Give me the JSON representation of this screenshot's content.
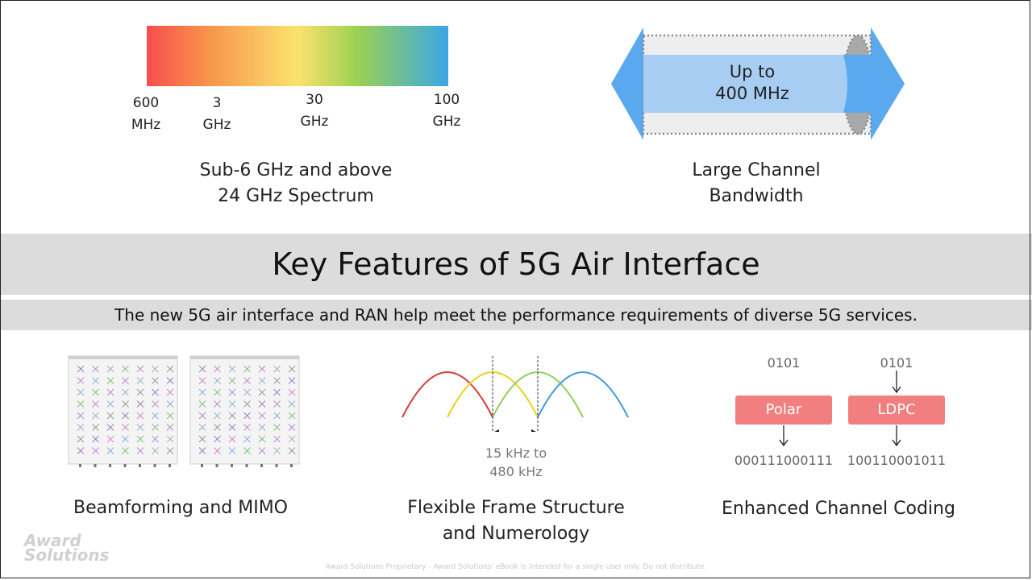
{
  "spectrum": {
    "ticks": [
      {
        "value": "600",
        "unit": "MHz"
      },
      {
        "value": "3",
        "unit": "GHz"
      },
      {
        "value": "30",
        "unit": "GHz"
      },
      {
        "value": "100",
        "unit": "GHz"
      }
    ],
    "caption_line1": "Sub-6 GHz and above",
    "caption_line2": "24 GHz Spectrum"
  },
  "bandwidth": {
    "label_line1": "Up to",
    "label_line2": "400 MHz",
    "caption_line1": "Large Channel",
    "caption_line2": "Bandwidth"
  },
  "title": "Key Features of 5G Air Interface",
  "subtitle": "The new 5G air interface and RAN help meet the performance requirements of diverse 5G services.",
  "beamforming": {
    "caption": "Beamforming and MIMO"
  },
  "frame": {
    "spacing_line1": "15 kHz to",
    "spacing_line2": "480 kHz",
    "caption_line1": "Flexible Frame Structure",
    "caption_line2": "and Numerology"
  },
  "coding": {
    "polar_input": "0101",
    "polar_label": "Polar",
    "polar_output": "000111000111",
    "ldpc_input": "0101",
    "ldpc_label": "LDPC",
    "ldpc_output": "100110001011",
    "caption": "Enhanced Channel Coding"
  },
  "logo": {
    "line1": "Award",
    "line2": "Solutions"
  },
  "footer": "Award Solutions Proprietary - Award Solutions' eBook is intended for a single user only. Do not distribute.",
  "colors": {
    "spectrum_red": "#f94d4d",
    "spectrum_blue": "#3aa7e6",
    "arrow_blue": "#5aa9ee",
    "code_box": "#f27f7f",
    "band_gray": "#dcdcdc"
  }
}
